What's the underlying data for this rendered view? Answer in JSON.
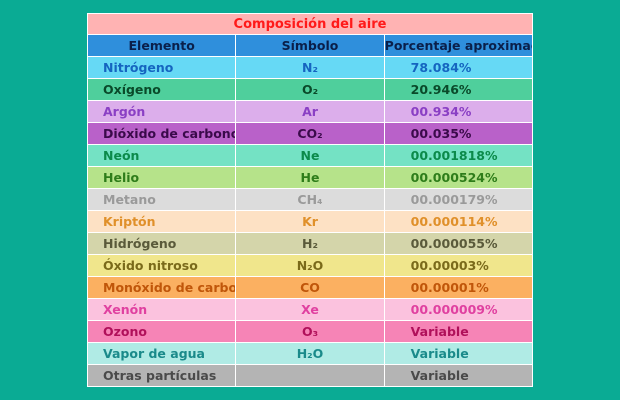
{
  "table": {
    "title": "Composición del aire",
    "headers": [
      "Elemento",
      "Símbolo",
      "Porcentaje aproximado"
    ],
    "rows": [
      {
        "element": "Nitrógeno",
        "symbol": "N₂",
        "percent": "78.084%",
        "bg": "#66d9f5",
        "fg": "#1565c0"
      },
      {
        "element": "Oxígeno",
        "symbol": "O₂",
        "percent": "20.946%",
        "bg": "#4fcf9c",
        "fg": "#0a4a2a"
      },
      {
        "element": "Argón",
        "symbol": "Ar",
        "percent": "00.934%",
        "bg": "#dcaeeb",
        "fg": "#8a3fc4"
      },
      {
        "element": "Dióxido de carbono",
        "symbol": "CO₂",
        "percent": "00.035%",
        "bg": "#b961c9",
        "fg": "#3a0a4a"
      },
      {
        "element": "Neón",
        "symbol": "Ne",
        "percent": "00.001818%",
        "bg": "#74e2c4",
        "fg": "#0b8a4a"
      },
      {
        "element": "Helio",
        "symbol": "He",
        "percent": "00.000524%",
        "bg": "#b6e38a",
        "fg": "#2e7d1a"
      },
      {
        "element": "Metano",
        "symbol": "CH₄",
        "percent": "00.000179%",
        "bg": "#dcdcdc",
        "fg": "#9a9a9a"
      },
      {
        "element": "Kriptón",
        "symbol": "Kr",
        "percent": "00.000114%",
        "bg": "#fde1c4",
        "fg": "#e0902a"
      },
      {
        "element": "Hidrógeno",
        "symbol": "H₂",
        "percent": "00.000055%",
        "bg": "#d4d5aa",
        "fg": "#5a5a3a"
      },
      {
        "element": "Óxido nitroso",
        "symbol": "N₂O",
        "percent": "00.00003%",
        "bg": "#f0e68c",
        "fg": "#7a6a1a"
      },
      {
        "element": "Monóxido de carbono",
        "symbol": "CO",
        "percent": "00.00001%",
        "bg": "#fbb061",
        "fg": "#c0560a"
      },
      {
        "element": "Xenón",
        "symbol": "Xe",
        "percent": "00.000009%",
        "bg": "#fbc2de",
        "fg": "#e040a0"
      },
      {
        "element": "Ozono",
        "symbol": "O₃",
        "percent": "Variable",
        "bg": "#f684b6",
        "fg": "#b0105a"
      },
      {
        "element": "Vapor de agua",
        "symbol": "H₂O",
        "percent": "Variable",
        "bg": "#b0ebe5",
        "fg": "#1a8a8a"
      },
      {
        "element": "Otras partículas",
        "symbol": "",
        "percent": "Variable",
        "bg": "#b4b4b4",
        "fg": "#4a4a4a"
      }
    ]
  }
}
